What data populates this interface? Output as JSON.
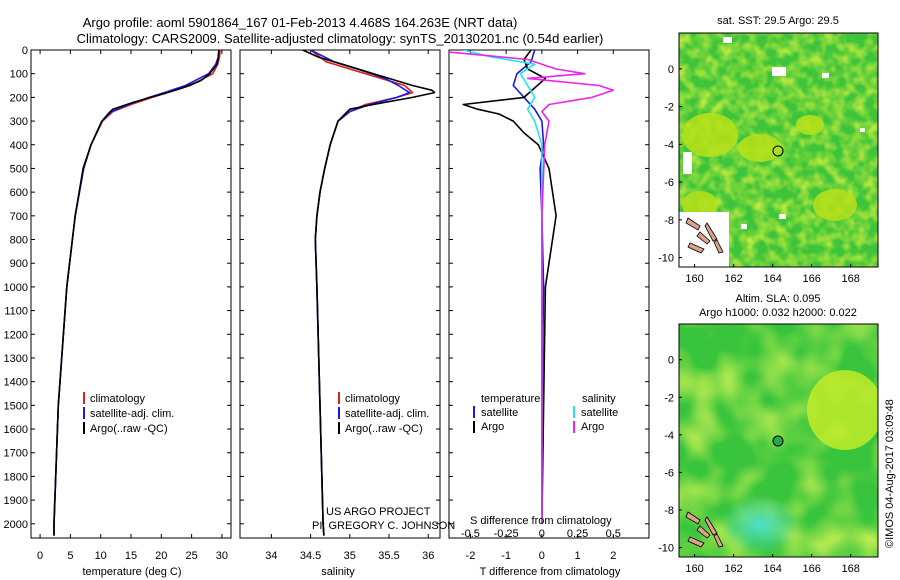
{
  "header": {
    "line1": "Argo profile: aoml 5901864_167 01-Feb-2013 4.468S 164.263E (NRT data)",
    "line2": "Climatology: CARS2009. Satellite-adjusted climatology: synTS_20130201.nc (0.54d earlier)"
  },
  "colors": {
    "climatology": "#e02020",
    "satellite": "#1a1ae6",
    "argo": "#000000",
    "sal_satellite": "#22e6ee",
    "sal_argo": "#ee22ee"
  },
  "project": {
    "line1": "US ARGO PROJECT",
    "line2": "PI: GREGORY C. JOHNSON"
  },
  "timestamp": "©IMOS 04-Aug-2017 03:09:48",
  "chart_data": [
    {
      "type": "line",
      "name": "temperature",
      "xlabel": "temperature (deg C)",
      "xlim": [
        -1.5,
        31.5
      ],
      "xticks": [
        0,
        5,
        10,
        15,
        20,
        25,
        30
      ],
      "ylim": [
        2060,
        0
      ],
      "yticks": [
        0,
        100,
        200,
        300,
        400,
        500,
        600,
        700,
        800,
        900,
        1000,
        1100,
        1200,
        1300,
        1400,
        1500,
        1600,
        1700,
        1800,
        1900,
        2000
      ],
      "legend": [
        "climatology",
        "satellite-adj. clim.",
        "Argo(..raw -QC)"
      ],
      "series": [
        {
          "name": "climatology",
          "depth": [
            0,
            30,
            60,
            100,
            150,
            180,
            200,
            230,
            260,
            300,
            400,
            500,
            700,
            1000,
            1500,
            2000,
            2050
          ],
          "values": [
            29.7,
            29.6,
            29.3,
            28.5,
            24.8,
            21.0,
            18.5,
            15.0,
            12.0,
            10.3,
            8.4,
            7.2,
            5.8,
            4.4,
            3.0,
            2.3,
            2.3
          ]
        },
        {
          "name": "satellite",
          "depth": [
            0,
            30,
            60,
            100,
            150,
            180,
            200,
            230,
            260,
            300,
            400,
            500,
            700,
            1000,
            1500,
            2000,
            2050
          ],
          "values": [
            29.5,
            29.4,
            29.0,
            27.8,
            24.0,
            20.5,
            18.0,
            14.6,
            11.8,
            10.2,
            8.4,
            7.2,
            5.8,
            4.4,
            3.0,
            2.3,
            2.3
          ]
        },
        {
          "name": "argo",
          "depth": [
            0,
            30,
            60,
            100,
            130,
            160,
            180,
            200,
            220,
            250,
            270,
            300,
            400,
            500,
            700,
            1000,
            1500,
            2000,
            2050
          ],
          "values": [
            29.5,
            29.4,
            29.2,
            28.0,
            26.5,
            23.5,
            21.0,
            18.2,
            15.5,
            12.0,
            11.2,
            10.2,
            8.4,
            7.1,
            5.8,
            4.4,
            3.0,
            2.3,
            2.3
          ]
        }
      ]
    },
    {
      "type": "line",
      "name": "salinity",
      "xlabel": "salinity",
      "xlim": [
        33.6,
        36.15
      ],
      "xticks": [
        34,
        34.5,
        35,
        35.5,
        36
      ],
      "ylim": [
        2060,
        0
      ],
      "legend": [
        "climatology",
        "satellite-adj. clim.",
        "Argo(..raw -QC)"
      ],
      "series": [
        {
          "name": "climatology",
          "depth": [
            0,
            50,
            100,
            150,
            180,
            200,
            230,
            260,
            300,
            400,
            500,
            600,
            700,
            800,
            1000,
            1500,
            2000,
            2050
          ],
          "values": [
            34.5,
            34.7,
            35.2,
            35.7,
            35.8,
            35.6,
            35.2,
            35.0,
            34.85,
            34.75,
            34.68,
            34.62,
            34.58,
            34.56,
            34.58,
            34.62,
            34.66,
            34.67
          ]
        },
        {
          "name": "satellite",
          "depth": [
            0,
            50,
            80,
            120,
            150,
            180,
            200,
            230,
            260,
            300,
            400,
            500,
            600,
            700,
            800,
            1000,
            1500,
            2000,
            2050
          ],
          "values": [
            34.5,
            34.8,
            35.1,
            35.45,
            35.62,
            35.76,
            35.6,
            35.25,
            35.0,
            34.85,
            34.75,
            34.68,
            34.62,
            34.58,
            34.56,
            34.58,
            34.62,
            34.66,
            34.67
          ]
        },
        {
          "name": "argo",
          "depth": [
            0,
            30,
            60,
            90,
            120,
            150,
            170,
            180,
            200,
            230,
            250,
            300,
            400,
            500,
            600,
            700,
            800,
            1000,
            1500,
            2000,
            2050
          ],
          "values": [
            34.4,
            34.6,
            34.9,
            35.2,
            35.5,
            35.8,
            36.05,
            36.08,
            35.8,
            35.3,
            35.0,
            34.85,
            34.75,
            34.68,
            34.62,
            34.58,
            34.56,
            34.58,
            34.62,
            34.66,
            34.67
          ]
        }
      ]
    },
    {
      "type": "line",
      "name": "difference",
      "xlabel": "T difference from climatology",
      "xlabel_top": "S difference from climatology",
      "xlim": [
        -2.6,
        3.0
      ],
      "xticks": [
        -2,
        -1,
        0,
        1,
        2
      ],
      "s_xticks": [
        -0.5,
        -0.25,
        0,
        0.25,
        0.5
      ],
      "ylim": [
        2060,
        0
      ],
      "legend": {
        "temperature_head": "temperature",
        "salinity_head": "salinity",
        "items": [
          "satellite",
          "Argo",
          "satellite",
          "Argo"
        ]
      },
      "series": [
        {
          "name": "T satellite",
          "depth": [
            0,
            50,
            100,
            150,
            200,
            250,
            300,
            400,
            500,
            700,
            1000,
            1500,
            2000
          ],
          "values": [
            -0.2,
            -0.3,
            -0.7,
            -0.8,
            -0.5,
            -0.2,
            0.0,
            0.05,
            -0.05,
            0.0,
            0.05,
            0.0,
            0.0
          ]
        },
        {
          "name": "T Argo",
          "depth": [
            0,
            40,
            80,
            120,
            160,
            200,
            230,
            250,
            270,
            300,
            350,
            400,
            500,
            700,
            1000,
            1500,
            2000
          ],
          "values": [
            -0.3,
            -0.5,
            -0.4,
            0.1,
            -0.2,
            -0.5,
            -2.2,
            -1.8,
            -1.2,
            -0.8,
            -0.5,
            -0.1,
            0.2,
            0.4,
            0.1,
            0.05,
            0.0
          ]
        },
        {
          "name": "S satellite",
          "depth": [
            0,
            30,
            60,
            100,
            150,
            200,
            250,
            300,
            400,
            700,
            1000,
            1500,
            2000
          ],
          "values": [
            -0.55,
            -0.35,
            -0.05,
            -0.15,
            -0.1,
            -0.05,
            -0.1,
            -0.05,
            0.0,
            0.0,
            0.0,
            0.0,
            0.0
          ]
        },
        {
          "name": "S Argo",
          "depth": [
            0,
            40,
            80,
            100,
            120,
            150,
            170,
            200,
            230,
            260,
            300,
            400,
            700,
            1000,
            1500,
            2000
          ],
          "values": [
            -0.8,
            -0.1,
            0.1,
            0.3,
            -0.1,
            0.4,
            0.5,
            0.35,
            0.05,
            0.0,
            0.05,
            0.02,
            0.0,
            0.0,
            0.0,
            0.0
          ]
        }
      ]
    },
    {
      "type": "heatmap",
      "name": "sst-map",
      "title": "sat. SST: 29.5  Argo: 29.5",
      "xticks": [
        160,
        162,
        164,
        166,
        168
      ],
      "yticks": [
        0,
        -2,
        -4,
        -6,
        -8,
        -10
      ],
      "xlim": [
        159.2,
        169.4
      ],
      "ylim": [
        -10.5,
        1.9
      ],
      "marker": {
        "lon": 164.263,
        "lat": -4.468
      }
    },
    {
      "type": "heatmap",
      "name": "sla-map",
      "title_line1": "Altim. SLA: 0.095",
      "title_line2": "Argo h1000: 0.032  h2000: 0.022",
      "xticks": [
        160,
        162,
        164,
        166,
        168
      ],
      "yticks": [
        0,
        -2,
        -4,
        -6,
        -8,
        -10
      ],
      "xlim": [
        159.2,
        169.4
      ],
      "ylim": [
        -10.5,
        1.9
      ],
      "marker": {
        "lon": 164.263,
        "lat": -4.468
      }
    }
  ]
}
